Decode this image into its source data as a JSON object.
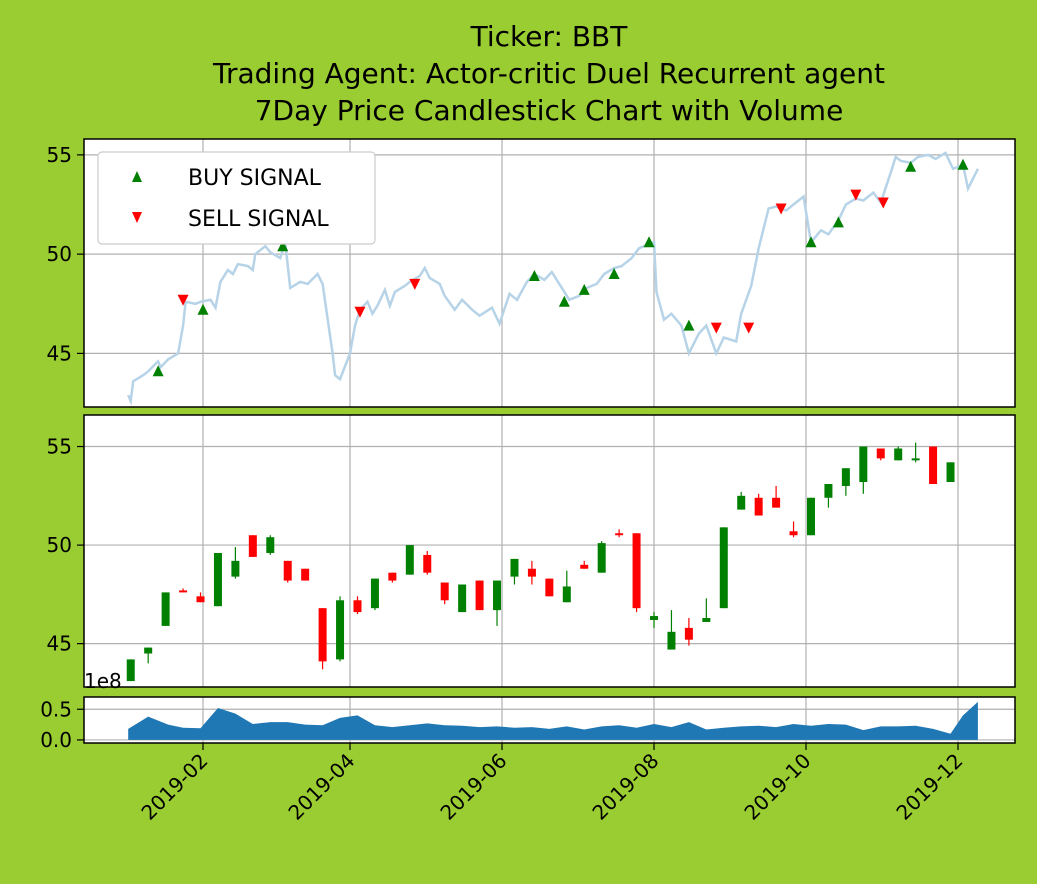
{
  "title_lines": [
    "Ticker: BBT",
    "Trading Agent: Actor-critic Duel Recurrent agent",
    "7Day Price Candlestick Chart with Volume"
  ],
  "colors": {
    "background": "#9acd32",
    "price_line": "#b6d3e8",
    "buy": "#008000",
    "sell": "#ff0000",
    "volume": "#1f77b4",
    "grid": "#b0b0b0"
  },
  "chart_data": [
    {
      "type": "line",
      "panel": "price",
      "ylim": [
        42.3,
        55.8
      ],
      "yticks": [
        "45",
        "50",
        "55"
      ],
      "legend": {
        "placement": "upper-left",
        "entries": [
          "BUY SIGNAL",
          "SELL SIGNAL"
        ]
      },
      "grid": true,
      "series": [
        {
          "values": [
            [
              "2019-01-02",
              42.9
            ],
            [
              "2019-01-03",
              42.6
            ],
            [
              "2019-01-04",
              43.6
            ],
            [
              "2019-01-08",
              43.9
            ],
            [
              "2019-01-10",
              44.1
            ],
            [
              "2019-01-14",
              44.6
            ],
            [
              "2019-01-15",
              44.3
            ],
            [
              "2019-01-18",
              44.7
            ],
            [
              "2019-01-22",
              45.0
            ],
            [
              "2019-01-24",
              46.4
            ],
            [
              "2019-01-25",
              47.6
            ],
            [
              "2019-01-29",
              47.5
            ],
            [
              "2019-01-31",
              47.6
            ],
            [
              "2019-02-04",
              47.7
            ],
            [
              "2019-02-06",
              47.3
            ],
            [
              "2019-02-08",
              48.6
            ],
            [
              "2019-02-11",
              49.2
            ],
            [
              "2019-02-13",
              49.0
            ],
            [
              "2019-02-15",
              49.5
            ],
            [
              "2019-02-19",
              49.4
            ],
            [
              "2019-02-21",
              49.2
            ],
            [
              "2019-02-22",
              50.0
            ],
            [
              "2019-02-26",
              50.4
            ],
            [
              "2019-02-28",
              50.1
            ],
            [
              "2019-03-04",
              49.8
            ],
            [
              "2019-03-06",
              50.6
            ],
            [
              "2019-03-08",
              48.3
            ],
            [
              "2019-03-12",
              48.6
            ],
            [
              "2019-03-15",
              48.5
            ],
            [
              "2019-03-19",
              49.0
            ],
            [
              "2019-03-21",
              48.5
            ],
            [
              "2019-03-25",
              45.0
            ],
            [
              "2019-03-26",
              43.9
            ],
            [
              "2019-03-28",
              43.7
            ],
            [
              "2019-04-01",
              45.0
            ],
            [
              "2019-04-03",
              46.4
            ],
            [
              "2019-04-05",
              47.2
            ],
            [
              "2019-04-08",
              47.6
            ],
            [
              "2019-04-10",
              47.0
            ],
            [
              "2019-04-12",
              47.4
            ],
            [
              "2019-04-15",
              48.2
            ],
            [
              "2019-04-17",
              47.4
            ],
            [
              "2019-04-19",
              48.1
            ],
            [
              "2019-04-23",
              48.4
            ],
            [
              "2019-04-25",
              48.6
            ],
            [
              "2019-04-29",
              48.9
            ],
            [
              "2019-05-01",
              49.3
            ],
            [
              "2019-05-03",
              48.8
            ],
            [
              "2019-05-07",
              48.5
            ],
            [
              "2019-05-09",
              47.9
            ],
            [
              "2019-05-13",
              47.2
            ],
            [
              "2019-05-16",
              47.7
            ],
            [
              "2019-05-20",
              47.2
            ],
            [
              "2019-05-23",
              46.9
            ],
            [
              "2019-05-28",
              47.3
            ],
            [
              "2019-05-31",
              46.5
            ],
            [
              "2019-06-04",
              48.0
            ],
            [
              "2019-06-07",
              47.7
            ],
            [
              "2019-06-11",
              48.6
            ],
            [
              "2019-06-14",
              49.0
            ],
            [
              "2019-06-18",
              48.7
            ],
            [
              "2019-06-21",
              49.1
            ],
            [
              "2019-06-25",
              48.3
            ],
            [
              "2019-06-28",
              47.7
            ],
            [
              "2019-07-02",
              47.9
            ],
            [
              "2019-07-05",
              48.3
            ],
            [
              "2019-07-09",
              48.5
            ],
            [
              "2019-07-12",
              49.0
            ],
            [
              "2019-07-16",
              49.3
            ],
            [
              "2019-07-19",
              49.4
            ],
            [
              "2019-07-23",
              49.8
            ],
            [
              "2019-07-26",
              50.3
            ],
            [
              "2019-07-30",
              50.5
            ],
            [
              "2019-08-01",
              50.6
            ],
            [
              "2019-08-02",
              48.1
            ],
            [
              "2019-08-05",
              46.7
            ],
            [
              "2019-08-08",
              47.0
            ],
            [
              "2019-08-12",
              46.4
            ],
            [
              "2019-08-15",
              45.0
            ],
            [
              "2019-08-19",
              46.0
            ],
            [
              "2019-08-22",
              46.4
            ],
            [
              "2019-08-26",
              45.0
            ],
            [
              "2019-08-29",
              45.8
            ],
            [
              "2019-09-03",
              45.6
            ],
            [
              "2019-09-05",
              47.0
            ],
            [
              "2019-09-09",
              48.4
            ],
            [
              "2019-09-12",
              50.3
            ],
            [
              "2019-09-16",
              52.3
            ],
            [
              "2019-09-19",
              52.4
            ],
            [
              "2019-09-23",
              52.2
            ],
            [
              "2019-09-26",
              52.5
            ],
            [
              "2019-09-30",
              52.9
            ],
            [
              "2019-10-03",
              50.6
            ],
            [
              "2019-10-07",
              51.2
            ],
            [
              "2019-10-10",
              51.0
            ],
            [
              "2019-10-14",
              51.7
            ],
            [
              "2019-10-17",
              52.5
            ],
            [
              "2019-10-21",
              52.8
            ],
            [
              "2019-10-24",
              52.7
            ],
            [
              "2019-10-28",
              53.1
            ],
            [
              "2019-10-31",
              52.6
            ],
            [
              "2019-11-04",
              54.1
            ],
            [
              "2019-11-06",
              54.9
            ],
            [
              "2019-11-08",
              54.7
            ],
            [
              "2019-11-12",
              54.6
            ],
            [
              "2019-11-15",
              54.9
            ],
            [
              "2019-11-19",
              55.0
            ],
            [
              "2019-11-22",
              54.8
            ],
            [
              "2019-11-26",
              55.1
            ],
            [
              "2019-11-29",
              54.3
            ],
            [
              "2019-12-03",
              54.5
            ],
            [
              "2019-12-05",
              53.3
            ],
            [
              "2019-12-09",
              54.3
            ]
          ]
        }
      ],
      "buy_signals": [
        [
          "2019-01-14",
          44.1
        ],
        [
          "2019-02-01",
          47.2
        ],
        [
          "2019-03-05",
          50.4
        ],
        [
          "2019-06-14",
          48.9
        ],
        [
          "2019-06-26",
          47.6
        ],
        [
          "2019-07-04",
          48.2
        ],
        [
          "2019-07-16",
          49.0
        ],
        [
          "2019-07-30",
          50.6
        ],
        [
          "2019-08-15",
          46.4
        ],
        [
          "2019-10-03",
          50.6
        ],
        [
          "2019-10-14",
          51.6
        ],
        [
          "2019-11-12",
          54.4
        ],
        [
          "2019-12-03",
          54.5
        ]
      ],
      "sell_signals": [
        [
          "2019-01-24",
          47.7
        ],
        [
          "2019-04-05",
          47.1
        ],
        [
          "2019-04-27",
          48.5
        ],
        [
          "2019-08-26",
          46.3
        ],
        [
          "2019-09-08",
          46.3
        ],
        [
          "2019-09-21",
          52.3
        ],
        [
          "2019-10-21",
          53.0
        ],
        [
          "2019-11-01",
          52.6
        ]
      ]
    },
    {
      "type": "candlestick",
      "panel": "candles",
      "ylim": [
        42.8,
        56.6
      ],
      "yticks": [
        "45",
        "50",
        "55"
      ],
      "grid": true,
      "candles": [
        [
          "2019-01-03",
          43.1,
          44.2,
          43.1,
          44.2
        ],
        [
          "2019-01-10",
          44.5,
          44.8,
          44.0,
          44.8
        ],
        [
          "2019-01-17",
          45.9,
          47.6,
          45.9,
          47.6
        ],
        [
          "2019-01-24",
          47.7,
          47.8,
          47.6,
          47.6
        ],
        [
          "2019-01-31",
          47.4,
          47.6,
          47.1,
          47.1
        ],
        [
          "2019-02-07",
          46.9,
          49.6,
          46.9,
          49.6
        ],
        [
          "2019-02-14",
          48.4,
          49.9,
          48.3,
          49.2
        ],
        [
          "2019-02-21",
          50.5,
          50.5,
          49.4,
          49.4
        ],
        [
          "2019-02-28",
          49.6,
          50.5,
          49.5,
          50.4
        ],
        [
          "2019-03-07",
          49.2,
          49.2,
          48.1,
          48.2
        ],
        [
          "2019-03-14",
          48.8,
          48.8,
          48.2,
          48.2
        ],
        [
          "2019-03-21",
          46.8,
          46.8,
          43.7,
          44.1
        ],
        [
          "2019-03-28",
          44.2,
          47.4,
          44.1,
          47.2
        ],
        [
          "2019-04-04",
          47.2,
          47.4,
          46.5,
          46.6
        ],
        [
          "2019-04-11",
          46.8,
          48.3,
          46.7,
          48.3
        ],
        [
          "2019-04-18",
          48.6,
          48.6,
          48.1,
          48.2
        ],
        [
          "2019-04-25",
          48.5,
          50.0,
          48.5,
          50.0
        ],
        [
          "2019-05-02",
          49.5,
          49.7,
          48.5,
          48.6
        ],
        [
          "2019-05-09",
          48.1,
          48.1,
          47.0,
          47.2
        ],
        [
          "2019-05-16",
          46.6,
          48.0,
          46.6,
          48.0
        ],
        [
          "2019-05-23",
          48.2,
          48.2,
          46.7,
          46.7
        ],
        [
          "2019-05-30",
          46.7,
          48.2,
          45.9,
          48.2
        ],
        [
          "2019-06-06",
          48.4,
          49.3,
          48.0,
          49.3
        ],
        [
          "2019-06-13",
          48.8,
          49.2,
          48.0,
          48.4
        ],
        [
          "2019-06-20",
          48.3,
          48.3,
          47.4,
          47.4
        ],
        [
          "2019-06-27",
          47.1,
          48.7,
          47.1,
          47.9
        ],
        [
          "2019-07-04",
          49.0,
          49.2,
          48.8,
          48.8
        ],
        [
          "2019-07-11",
          48.6,
          50.2,
          48.6,
          50.1
        ],
        [
          "2019-07-18",
          50.6,
          50.8,
          50.4,
          50.5
        ],
        [
          "2019-07-25",
          50.6,
          50.6,
          46.6,
          46.8
        ],
        [
          "2019-08-01",
          46.2,
          46.6,
          45.8,
          46.4
        ],
        [
          "2019-08-08",
          44.7,
          46.7,
          44.7,
          45.6
        ],
        [
          "2019-08-15",
          45.8,
          46.3,
          44.9,
          45.2
        ],
        [
          "2019-08-22",
          46.1,
          47.3,
          46.1,
          46.3
        ],
        [
          "2019-08-29",
          46.8,
          50.9,
          46.8,
          50.9
        ],
        [
          "2019-09-05",
          51.8,
          52.7,
          51.8,
          52.5
        ],
        [
          "2019-09-12",
          52.4,
          52.6,
          51.5,
          51.5
        ],
        [
          "2019-09-19",
          52.4,
          53.0,
          51.9,
          51.9
        ],
        [
          "2019-09-26",
          50.7,
          51.2,
          50.4,
          50.5
        ],
        [
          "2019-10-03",
          50.5,
          52.4,
          50.5,
          52.4
        ],
        [
          "2019-10-10",
          52.4,
          53.1,
          51.9,
          53.1
        ],
        [
          "2019-10-17",
          53.0,
          53.9,
          52.5,
          53.9
        ],
        [
          "2019-10-24",
          53.2,
          55.0,
          52.6,
          55.0
        ],
        [
          "2019-10-31",
          54.9,
          54.9,
          54.3,
          54.4
        ],
        [
          "2019-11-07",
          54.3,
          55.0,
          54.3,
          54.9
        ],
        [
          "2019-11-14",
          54.3,
          55.2,
          54.2,
          54.4
        ],
        [
          "2019-11-21",
          55.0,
          55.0,
          53.1,
          53.1
        ],
        [
          "2019-11-28",
          53.2,
          54.2,
          53.2,
          54.2
        ]
      ]
    },
    {
      "type": "area",
      "panel": "volume",
      "ylim": [
        -0.05,
        0.7
      ],
      "yticks": [
        "0.0",
        "0.5"
      ],
      "offset_text": "1e8",
      "grid": true,
      "values": [
        [
          "2019-01-02",
          0.18
        ],
        [
          "2019-01-10",
          0.38
        ],
        [
          "2019-01-18",
          0.25
        ],
        [
          "2019-01-24",
          0.2
        ],
        [
          "2019-01-31",
          0.19
        ],
        [
          "2019-02-07",
          0.52
        ],
        [
          "2019-02-14",
          0.43
        ],
        [
          "2019-02-21",
          0.26
        ],
        [
          "2019-02-28",
          0.29
        ],
        [
          "2019-03-07",
          0.29
        ],
        [
          "2019-03-14",
          0.25
        ],
        [
          "2019-03-21",
          0.24
        ],
        [
          "2019-03-28",
          0.36
        ],
        [
          "2019-04-04",
          0.4
        ],
        [
          "2019-04-11",
          0.24
        ],
        [
          "2019-04-18",
          0.21
        ],
        [
          "2019-04-25",
          0.24
        ],
        [
          "2019-05-02",
          0.27
        ],
        [
          "2019-05-09",
          0.24
        ],
        [
          "2019-05-16",
          0.23
        ],
        [
          "2019-05-23",
          0.21
        ],
        [
          "2019-05-30",
          0.22
        ],
        [
          "2019-06-06",
          0.2
        ],
        [
          "2019-06-13",
          0.21
        ],
        [
          "2019-06-20",
          0.18
        ],
        [
          "2019-06-27",
          0.22
        ],
        [
          "2019-07-04",
          0.17
        ],
        [
          "2019-07-11",
          0.22
        ],
        [
          "2019-07-18",
          0.24
        ],
        [
          "2019-07-25",
          0.2
        ],
        [
          "2019-08-01",
          0.26
        ],
        [
          "2019-08-08",
          0.21
        ],
        [
          "2019-08-15",
          0.29
        ],
        [
          "2019-08-22",
          0.17
        ],
        [
          "2019-08-29",
          0.2
        ],
        [
          "2019-09-05",
          0.22
        ],
        [
          "2019-09-12",
          0.23
        ],
        [
          "2019-09-19",
          0.21
        ],
        [
          "2019-09-26",
          0.26
        ],
        [
          "2019-10-03",
          0.23
        ],
        [
          "2019-10-10",
          0.26
        ],
        [
          "2019-10-17",
          0.25
        ],
        [
          "2019-10-24",
          0.16
        ],
        [
          "2019-10-31",
          0.22
        ],
        [
          "2019-11-07",
          0.22
        ],
        [
          "2019-11-14",
          0.23
        ],
        [
          "2019-11-21",
          0.18
        ],
        [
          "2019-11-28",
          0.1
        ],
        [
          "2019-12-03",
          0.4
        ],
        [
          "2019-12-09",
          0.62
        ]
      ],
      "xticks": [
        "2019-02",
        "2019-04",
        "2019-06",
        "2019-08",
        "2019-10",
        "2019-12"
      ]
    }
  ]
}
